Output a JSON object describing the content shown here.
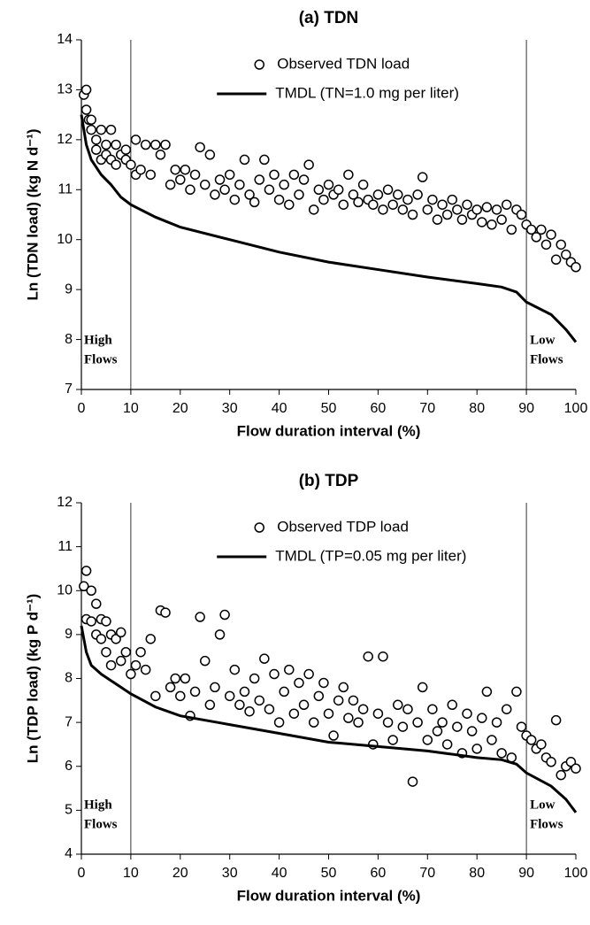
{
  "chart_data": [
    {
      "type": "scatter",
      "title": "(a) TDN",
      "x_label": "Flow duration interval (%)",
      "y_label": "Ln (TDN load) (kg N d⁻¹)",
      "xlim": [
        0,
        100
      ],
      "xticks": [
        0,
        10,
        20,
        30,
        40,
        50,
        60,
        70,
        80,
        90,
        100
      ],
      "ylim": [
        7,
        14
      ],
      "yticks": [
        7,
        8,
        9,
        10,
        11,
        12,
        13,
        14
      ],
      "vlines": [
        10,
        90
      ],
      "annotations": [
        [
          "High",
          "Flows"
        ],
        [
          "Low",
          "Flows"
        ]
      ],
      "legend": "upper center",
      "series": [
        {
          "name": "Observed TDN load",
          "mode": "markers",
          "color": "#000000",
          "x": [
            0.5,
            1,
            1,
            1.5,
            2,
            2,
            3,
            3,
            4,
            4,
            5,
            5,
            6,
            6,
            7,
            7,
            8,
            9,
            9,
            10,
            11,
            11,
            12,
            13,
            14,
            15,
            16,
            17,
            18,
            19,
            20,
            21,
            22,
            23,
            24,
            25,
            26,
            27,
            28,
            29,
            30,
            31,
            32,
            33,
            34,
            35,
            36,
            37,
            38,
            39,
            40,
            41,
            42,
            43,
            44,
            45,
            46,
            47,
            48,
            49,
            50,
            51,
            52,
            53,
            54,
            55,
            56,
            57,
            58,
            59,
            60,
            61,
            62,
            63,
            64,
            65,
            66,
            67,
            68,
            69,
            70,
            71,
            72,
            73,
            74,
            75,
            76,
            77,
            78,
            79,
            80,
            81,
            82,
            83,
            84,
            85,
            86,
            87,
            88,
            89,
            90,
            91,
            92,
            93,
            94,
            95,
            96,
            97,
            98,
            99,
            100
          ],
          "values": [
            12.9,
            13.0,
            12.6,
            12.4,
            12.4,
            12.2,
            11.8,
            12.0,
            11.6,
            12.2,
            11.9,
            11.7,
            12.2,
            11.6,
            11.9,
            11.5,
            11.7,
            11.6,
            11.8,
            11.5,
            12.0,
            11.3,
            11.4,
            11.9,
            11.3,
            11.9,
            11.7,
            11.9,
            11.1,
            11.4,
            11.2,
            11.4,
            11.0,
            11.3,
            11.85,
            11.1,
            11.7,
            10.9,
            11.2,
            11.0,
            11.3,
            10.8,
            11.1,
            11.6,
            10.9,
            10.75,
            11.2,
            11.6,
            11.0,
            11.3,
            10.8,
            11.1,
            10.7,
            11.3,
            10.9,
            11.2,
            11.5,
            10.6,
            11.0,
            10.8,
            11.1,
            10.9,
            11.0,
            10.7,
            11.3,
            10.9,
            10.75,
            11.1,
            10.8,
            10.7,
            10.9,
            10.6,
            11.0,
            10.7,
            10.9,
            10.6,
            10.8,
            10.5,
            10.9,
            11.25,
            10.6,
            10.8,
            10.4,
            10.7,
            10.5,
            10.8,
            10.6,
            10.4,
            10.7,
            10.5,
            10.6,
            10.35,
            10.65,
            10.3,
            10.6,
            10.4,
            10.7,
            10.2,
            10.6,
            10.5,
            10.3,
            10.2,
            10.05,
            10.2,
            9.9,
            10.1,
            9.6,
            9.9,
            9.7,
            9.55,
            9.45
          ]
        },
        {
          "name": "TMDL (TN=1.0 mg per liter)",
          "mode": "line",
          "color": "#000000",
          "x": [
            0,
            1,
            2,
            4,
            6,
            8,
            10,
            15,
            20,
            30,
            40,
            50,
            60,
            70,
            80,
            85,
            88,
            90,
            95,
            98,
            100
          ],
          "values": [
            12.5,
            11.9,
            11.6,
            11.3,
            11.1,
            10.85,
            10.7,
            10.45,
            10.25,
            10.0,
            9.75,
            9.55,
            9.4,
            9.25,
            9.12,
            9.05,
            8.95,
            8.75,
            8.5,
            8.2,
            7.95
          ]
        }
      ]
    },
    {
      "type": "scatter",
      "title": "(b) TDP",
      "x_label": "Flow duration interval (%)",
      "y_label": "Ln (TDP load) (kg P d⁻¹)",
      "xlim": [
        0,
        100
      ],
      "xticks": [
        0,
        10,
        20,
        30,
        40,
        50,
        60,
        70,
        80,
        90,
        100
      ],
      "ylim": [
        4,
        12
      ],
      "yticks": [
        4,
        5,
        6,
        7,
        8,
        9,
        10,
        11,
        12
      ],
      "vlines": [
        10,
        90
      ],
      "annotations": [
        [
          "High",
          "Flows"
        ],
        [
          "Low",
          "Flows"
        ]
      ],
      "legend": "upper center",
      "series": [
        {
          "name": "Observed TDP load",
          "mode": "markers",
          "color": "#000000",
          "x": [
            0.5,
            1,
            1,
            2,
            2,
            3,
            3,
            4,
            4,
            5,
            5,
            6,
            6,
            7,
            8,
            8,
            9,
            10,
            11,
            12,
            13,
            14,
            15,
            16,
            17,
            18,
            19,
            20,
            21,
            22,
            23,
            24,
            25,
            26,
            27,
            28,
            29,
            30,
            31,
            32,
            33,
            34,
            35,
            36,
            37,
            38,
            39,
            40,
            41,
            42,
            43,
            44,
            45,
            46,
            47,
            48,
            49,
            50,
            51,
            52,
            53,
            54,
            55,
            56,
            57,
            58,
            59,
            60,
            61,
            62,
            63,
            64,
            65,
            66,
            67,
            68,
            69,
            70,
            71,
            72,
            73,
            74,
            75,
            76,
            77,
            78,
            79,
            80,
            81,
            82,
            83,
            84,
            85,
            86,
            87,
            88,
            89,
            90,
            91,
            92,
            93,
            94,
            95,
            96,
            97,
            98,
            99,
            100
          ],
          "values": [
            10.1,
            10.45,
            9.35,
            10.0,
            9.3,
            9.7,
            9.0,
            9.35,
            8.9,
            9.3,
            8.6,
            9.0,
            8.3,
            8.9,
            8.4,
            9.05,
            8.6,
            8.1,
            8.3,
            8.6,
            8.2,
            8.9,
            7.6,
            9.55,
            9.5,
            7.8,
            8.0,
            7.6,
            8.0,
            7.15,
            7.7,
            9.4,
            8.4,
            7.4,
            7.8,
            9.0,
            9.45,
            7.6,
            8.2,
            7.4,
            7.7,
            7.25,
            8.0,
            7.5,
            8.45,
            7.3,
            8.1,
            7.0,
            7.7,
            8.2,
            7.2,
            7.9,
            7.4,
            8.1,
            7.0,
            7.6,
            7.9,
            7.2,
            6.7,
            7.5,
            7.8,
            7.1,
            7.5,
            7.0,
            7.3,
            8.5,
            6.5,
            7.2,
            8.5,
            7.0,
            6.6,
            7.4,
            6.9,
            7.3,
            5.65,
            7.0,
            7.8,
            6.6,
            7.3,
            6.8,
            7.0,
            6.5,
            7.4,
            6.9,
            6.3,
            7.2,
            6.8,
            6.4,
            7.1,
            7.7,
            6.6,
            7.0,
            6.3,
            7.3,
            6.2,
            7.7,
            6.9,
            6.7,
            6.6,
            6.4,
            6.5,
            6.2,
            6.1,
            7.05,
            5.8,
            6.0,
            6.1,
            5.95
          ]
        },
        {
          "name": "TMDL (TP=0.05 mg per liter)",
          "mode": "line",
          "color": "#000000",
          "x": [
            0,
            1,
            2,
            4,
            6,
            8,
            10,
            15,
            20,
            30,
            40,
            50,
            60,
            70,
            80,
            85,
            88,
            90,
            95,
            98,
            100
          ],
          "values": [
            9.2,
            8.6,
            8.3,
            8.1,
            7.95,
            7.8,
            7.65,
            7.35,
            7.15,
            6.95,
            6.75,
            6.55,
            6.45,
            6.35,
            6.2,
            6.15,
            6.05,
            5.85,
            5.55,
            5.25,
            4.95
          ]
        }
      ]
    }
  ]
}
